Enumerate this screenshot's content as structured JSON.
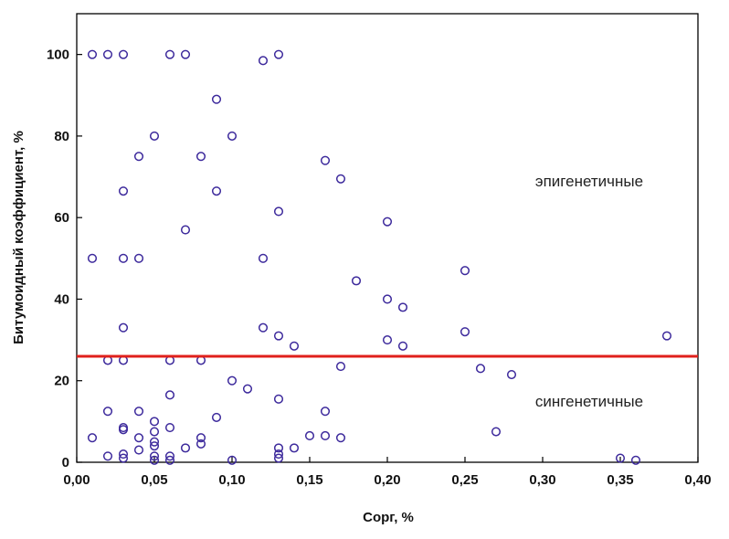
{
  "chart_data": {
    "type": "scatter",
    "title": "",
    "xlabel": "Сорг, %",
    "ylabel": "Битумоидный коэффициент, %",
    "xlim": [
      0,
      0.4
    ],
    "ylim": [
      0,
      110
    ],
    "xticks": [
      0,
      0.05,
      0.1,
      0.15,
      0.2,
      0.25,
      0.3,
      0.35,
      0.4
    ],
    "xtick_labels": [
      "0,00",
      "0,05",
      "0,10",
      "0,15",
      "0,20",
      "0,25",
      "0,30",
      "0,35",
      "0,40"
    ],
    "yticks": [
      0,
      20,
      40,
      60,
      80,
      100
    ],
    "ytick_labels": [
      "0",
      "20",
      "40",
      "60",
      "80",
      "100"
    ],
    "grid": false,
    "threshold_line": {
      "y": 26,
      "color": "#e0201b"
    },
    "annotations": [
      {
        "text": "эпигенетичные",
        "x": 0.33,
        "y": 69
      },
      {
        "text": "сингенетичные",
        "x": 0.33,
        "y": 15
      }
    ],
    "marker_color": "#3d2a9c",
    "points": [
      [
        0.01,
        100
      ],
      [
        0.02,
        100
      ],
      [
        0.03,
        100
      ],
      [
        0.06,
        100
      ],
      [
        0.07,
        100
      ],
      [
        0.12,
        98.5
      ],
      [
        0.13,
        100
      ],
      [
        0.09,
        89
      ],
      [
        0.05,
        80
      ],
      [
        0.1,
        80
      ],
      [
        0.04,
        75
      ],
      [
        0.08,
        75
      ],
      [
        0.16,
        74
      ],
      [
        0.17,
        69.5
      ],
      [
        0.03,
        66.5
      ],
      [
        0.09,
        66.5
      ],
      [
        0.13,
        61.5
      ],
      [
        0.2,
        59
      ],
      [
        0.07,
        57
      ],
      [
        0.01,
        50
      ],
      [
        0.03,
        50
      ],
      [
        0.04,
        50
      ],
      [
        0.12,
        50
      ],
      [
        0.25,
        47
      ],
      [
        0.18,
        44.5
      ],
      [
        0.2,
        40
      ],
      [
        0.21,
        38
      ],
      [
        0.03,
        33
      ],
      [
        0.12,
        33
      ],
      [
        0.13,
        31
      ],
      [
        0.25,
        32
      ],
      [
        0.38,
        31
      ],
      [
        0.2,
        30
      ],
      [
        0.14,
        28.5
      ],
      [
        0.21,
        28.5
      ],
      [
        0.02,
        25
      ],
      [
        0.03,
        25
      ],
      [
        0.06,
        25
      ],
      [
        0.08,
        25
      ],
      [
        0.17,
        23.5
      ],
      [
        0.26,
        23
      ],
      [
        0.28,
        21.5
      ],
      [
        0.1,
        20
      ],
      [
        0.11,
        18
      ],
      [
        0.06,
        16.5
      ],
      [
        0.13,
        15.5
      ],
      [
        0.02,
        12.5
      ],
      [
        0.04,
        12.5
      ],
      [
        0.16,
        12.5
      ],
      [
        0.09,
        11
      ],
      [
        0.05,
        10
      ],
      [
        0.03,
        8.5
      ],
      [
        0.03,
        8
      ],
      [
        0.06,
        8.5
      ],
      [
        0.05,
        7.5
      ],
      [
        0.27,
        7.5
      ],
      [
        0.01,
        6
      ],
      [
        0.04,
        6
      ],
      [
        0.08,
        6
      ],
      [
        0.15,
        6.5
      ],
      [
        0.16,
        6.5
      ],
      [
        0.17,
        6
      ],
      [
        0.05,
        5
      ],
      [
        0.05,
        4
      ],
      [
        0.08,
        4.5
      ],
      [
        0.07,
        3.5
      ],
      [
        0.13,
        3.5
      ],
      [
        0.04,
        3
      ],
      [
        0.14,
        3.5
      ],
      [
        0.02,
        1.5
      ],
      [
        0.03,
        2
      ],
      [
        0.03,
        1
      ],
      [
        0.05,
        1.5
      ],
      [
        0.06,
        1.5
      ],
      [
        0.13,
        2
      ],
      [
        0.13,
        1
      ],
      [
        0.05,
        0.5
      ],
      [
        0.06,
        0.5
      ],
      [
        0.1,
        0.5
      ],
      [
        0.35,
        1
      ],
      [
        0.36,
        0.5
      ]
    ]
  }
}
